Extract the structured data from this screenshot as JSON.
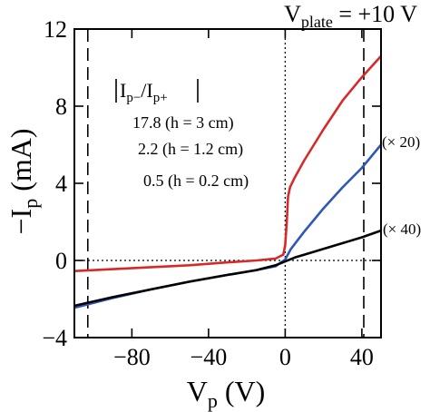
{
  "chart_data": {
    "type": "line",
    "title": {
      "base": "V",
      "sub": "plate",
      "rest": " = +10 V"
    },
    "xlabel": {
      "base": "V",
      "sub": "p",
      "rest": " (V)"
    },
    "ylabel": {
      "prefix": "−I",
      "sub": "p",
      "rest": " (mA)"
    },
    "xlim": [
      -110,
      50
    ],
    "ylim": [
      -4,
      12
    ],
    "xticks": [
      -80,
      -40,
      0,
      40
    ],
    "xtick_labels": [
      "−80",
      "−40",
      "0",
      "40"
    ],
    "yticks": [
      -4,
      0,
      4,
      8,
      12
    ],
    "ytick_labels": [
      "−4",
      "0",
      "4",
      "8",
      "12"
    ],
    "grid": false,
    "reference_lines": {
      "dashed_vertical": [
        -103,
        41
      ],
      "dotted_vertical": [
        0
      ],
      "dotted_horizontal": [
        0
      ]
    },
    "legend_header": {
      "a": "I",
      "a_sub": "p−",
      "slash": "/",
      "b": "I",
      "b_sub": "p+"
    },
    "series": [
      {
        "name": "17.8 (h = 3 cm)",
        "color": "#d62a2a",
        "x": [
          -110,
          -90,
          -70,
          -50,
          -30,
          -15,
          -5,
          -1,
          0,
          0.8,
          1.5,
          2.5,
          5,
          10,
          20,
          30,
          40,
          50
        ],
        "y": [
          -0.55,
          -0.45,
          -0.35,
          -0.25,
          -0.1,
          0.0,
          0.1,
          0.3,
          0.8,
          2.0,
          3.3,
          3.8,
          4.3,
          5.2,
          6.8,
          8.3,
          9.5,
          10.6
        ]
      },
      {
        "name": "2.2 (h = 1.2 cm)",
        "color": "#2f57b8",
        "x": [
          -110,
          -90,
          -70,
          -50,
          -30,
          -15,
          -5,
          0,
          3,
          10,
          20,
          30,
          40,
          50
        ],
        "y": [
          -2.45,
          -1.95,
          -1.5,
          -1.1,
          -0.75,
          -0.5,
          -0.3,
          0.05,
          0.6,
          1.5,
          2.7,
          3.8,
          4.8,
          6.0
        ]
      },
      {
        "name": "0.5 (h = 0.2 cm)",
        "color": "#000000",
        "x": [
          -110,
          -90,
          -70,
          -50,
          -30,
          -15,
          -5,
          0,
          5,
          10,
          20,
          30,
          40,
          50
        ],
        "y": [
          -2.35,
          -1.9,
          -1.5,
          -1.1,
          -0.75,
          -0.5,
          -0.25,
          -0.05,
          0.15,
          0.3,
          0.6,
          0.9,
          1.2,
          1.55
        ]
      }
    ],
    "annotations": [
      "(× 20)",
      "(× 40)"
    ]
  }
}
